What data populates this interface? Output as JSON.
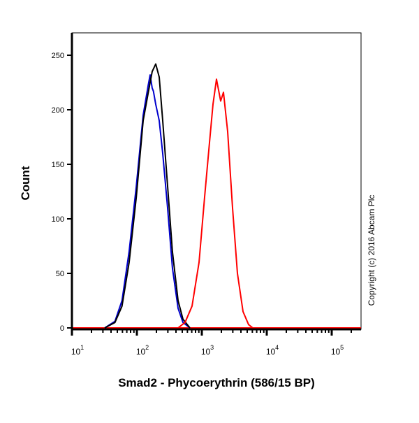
{
  "chart_data": {
    "type": "line",
    "xlabel": "Smad2 - Phycoerythrin (586/15 BP)",
    "ylabel": "Count",
    "x_scale": "log",
    "xlim": [
      10,
      270000
    ],
    "ylim": [
      0,
      250
    ],
    "y_ticks": [
      0,
      50,
      100,
      150,
      200,
      250
    ],
    "x_tick_labels": [
      {
        "base": "10",
        "exp": "1"
      },
      {
        "base": "10",
        "exp": "2"
      },
      {
        "base": "10",
        "exp": "3"
      },
      {
        "base": "10",
        "exp": "4"
      },
      {
        "base": "10",
        "exp": "5"
      }
    ],
    "grid": false,
    "annotation": "Copyright (c) 2016 Abcam Plc",
    "series": [
      {
        "color": "#0000cc",
        "x": [
          32,
          46,
          59,
          76,
          98,
          125,
          149,
          160,
          172,
          180,
          195,
          221,
          250,
          297,
          353,
          431,
          513,
          656
        ],
        "y": [
          0,
          6,
          25,
          70,
          130,
          195,
          222,
          232,
          220,
          217,
          205,
          190,
          160,
          110,
          55,
          18,
          5,
          0
        ]
      },
      {
        "color": "#000000",
        "x": [
          32,
          46,
          59,
          76,
          98,
          125,
          149,
          172,
          195,
          221,
          250,
          297,
          353,
          431,
          513,
          656
        ],
        "y": [
          0,
          5,
          20,
          60,
          120,
          190,
          215,
          235,
          242,
          230,
          190,
          130,
          70,
          25,
          8,
          0
        ]
      },
      {
        "color": "#ff0000",
        "x": [
          431,
          552,
          707,
          905,
          1104,
          1313,
          1486,
          1683,
          1951,
          2153,
          2500,
          2974,
          3533,
          4305,
          5248,
          6095
        ],
        "y": [
          0,
          5,
          20,
          60,
          120,
          170,
          205,
          228,
          208,
          216,
          180,
          110,
          50,
          15,
          3,
          0
        ]
      }
    ]
  }
}
